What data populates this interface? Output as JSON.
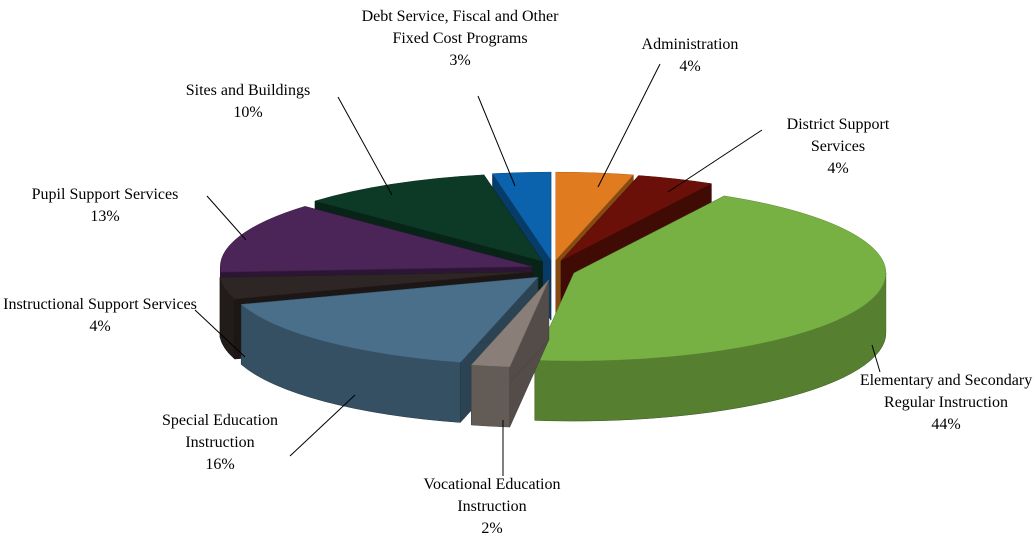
{
  "chart_data": {
    "type": "pie3d",
    "categories": [
      "Administration",
      "District Support Services",
      "Elementary and Secondary Regular Instruction",
      "Vocational Education Instruction",
      "Special Education Instruction",
      "Instructional Support Services",
      "Pupil Support Services",
      "Sites and Buildings",
      "Debt Service, Fiscal and Other Fixed Cost Programs"
    ],
    "values": [
      4,
      4,
      44,
      2,
      16,
      4,
      13,
      10,
      3
    ],
    "value_labels": [
      "4%",
      "4%",
      "44%",
      "2%",
      "16%",
      "4%",
      "13%",
      "10%",
      "3%"
    ],
    "colors": [
      "#e07b1f",
      "#6b1008",
      "#77b043",
      "#8a7f78",
      "#4a6f8a",
      "#2e2624",
      "#4b2458",
      "#0d3a26",
      "#0b62ad"
    ]
  }
}
